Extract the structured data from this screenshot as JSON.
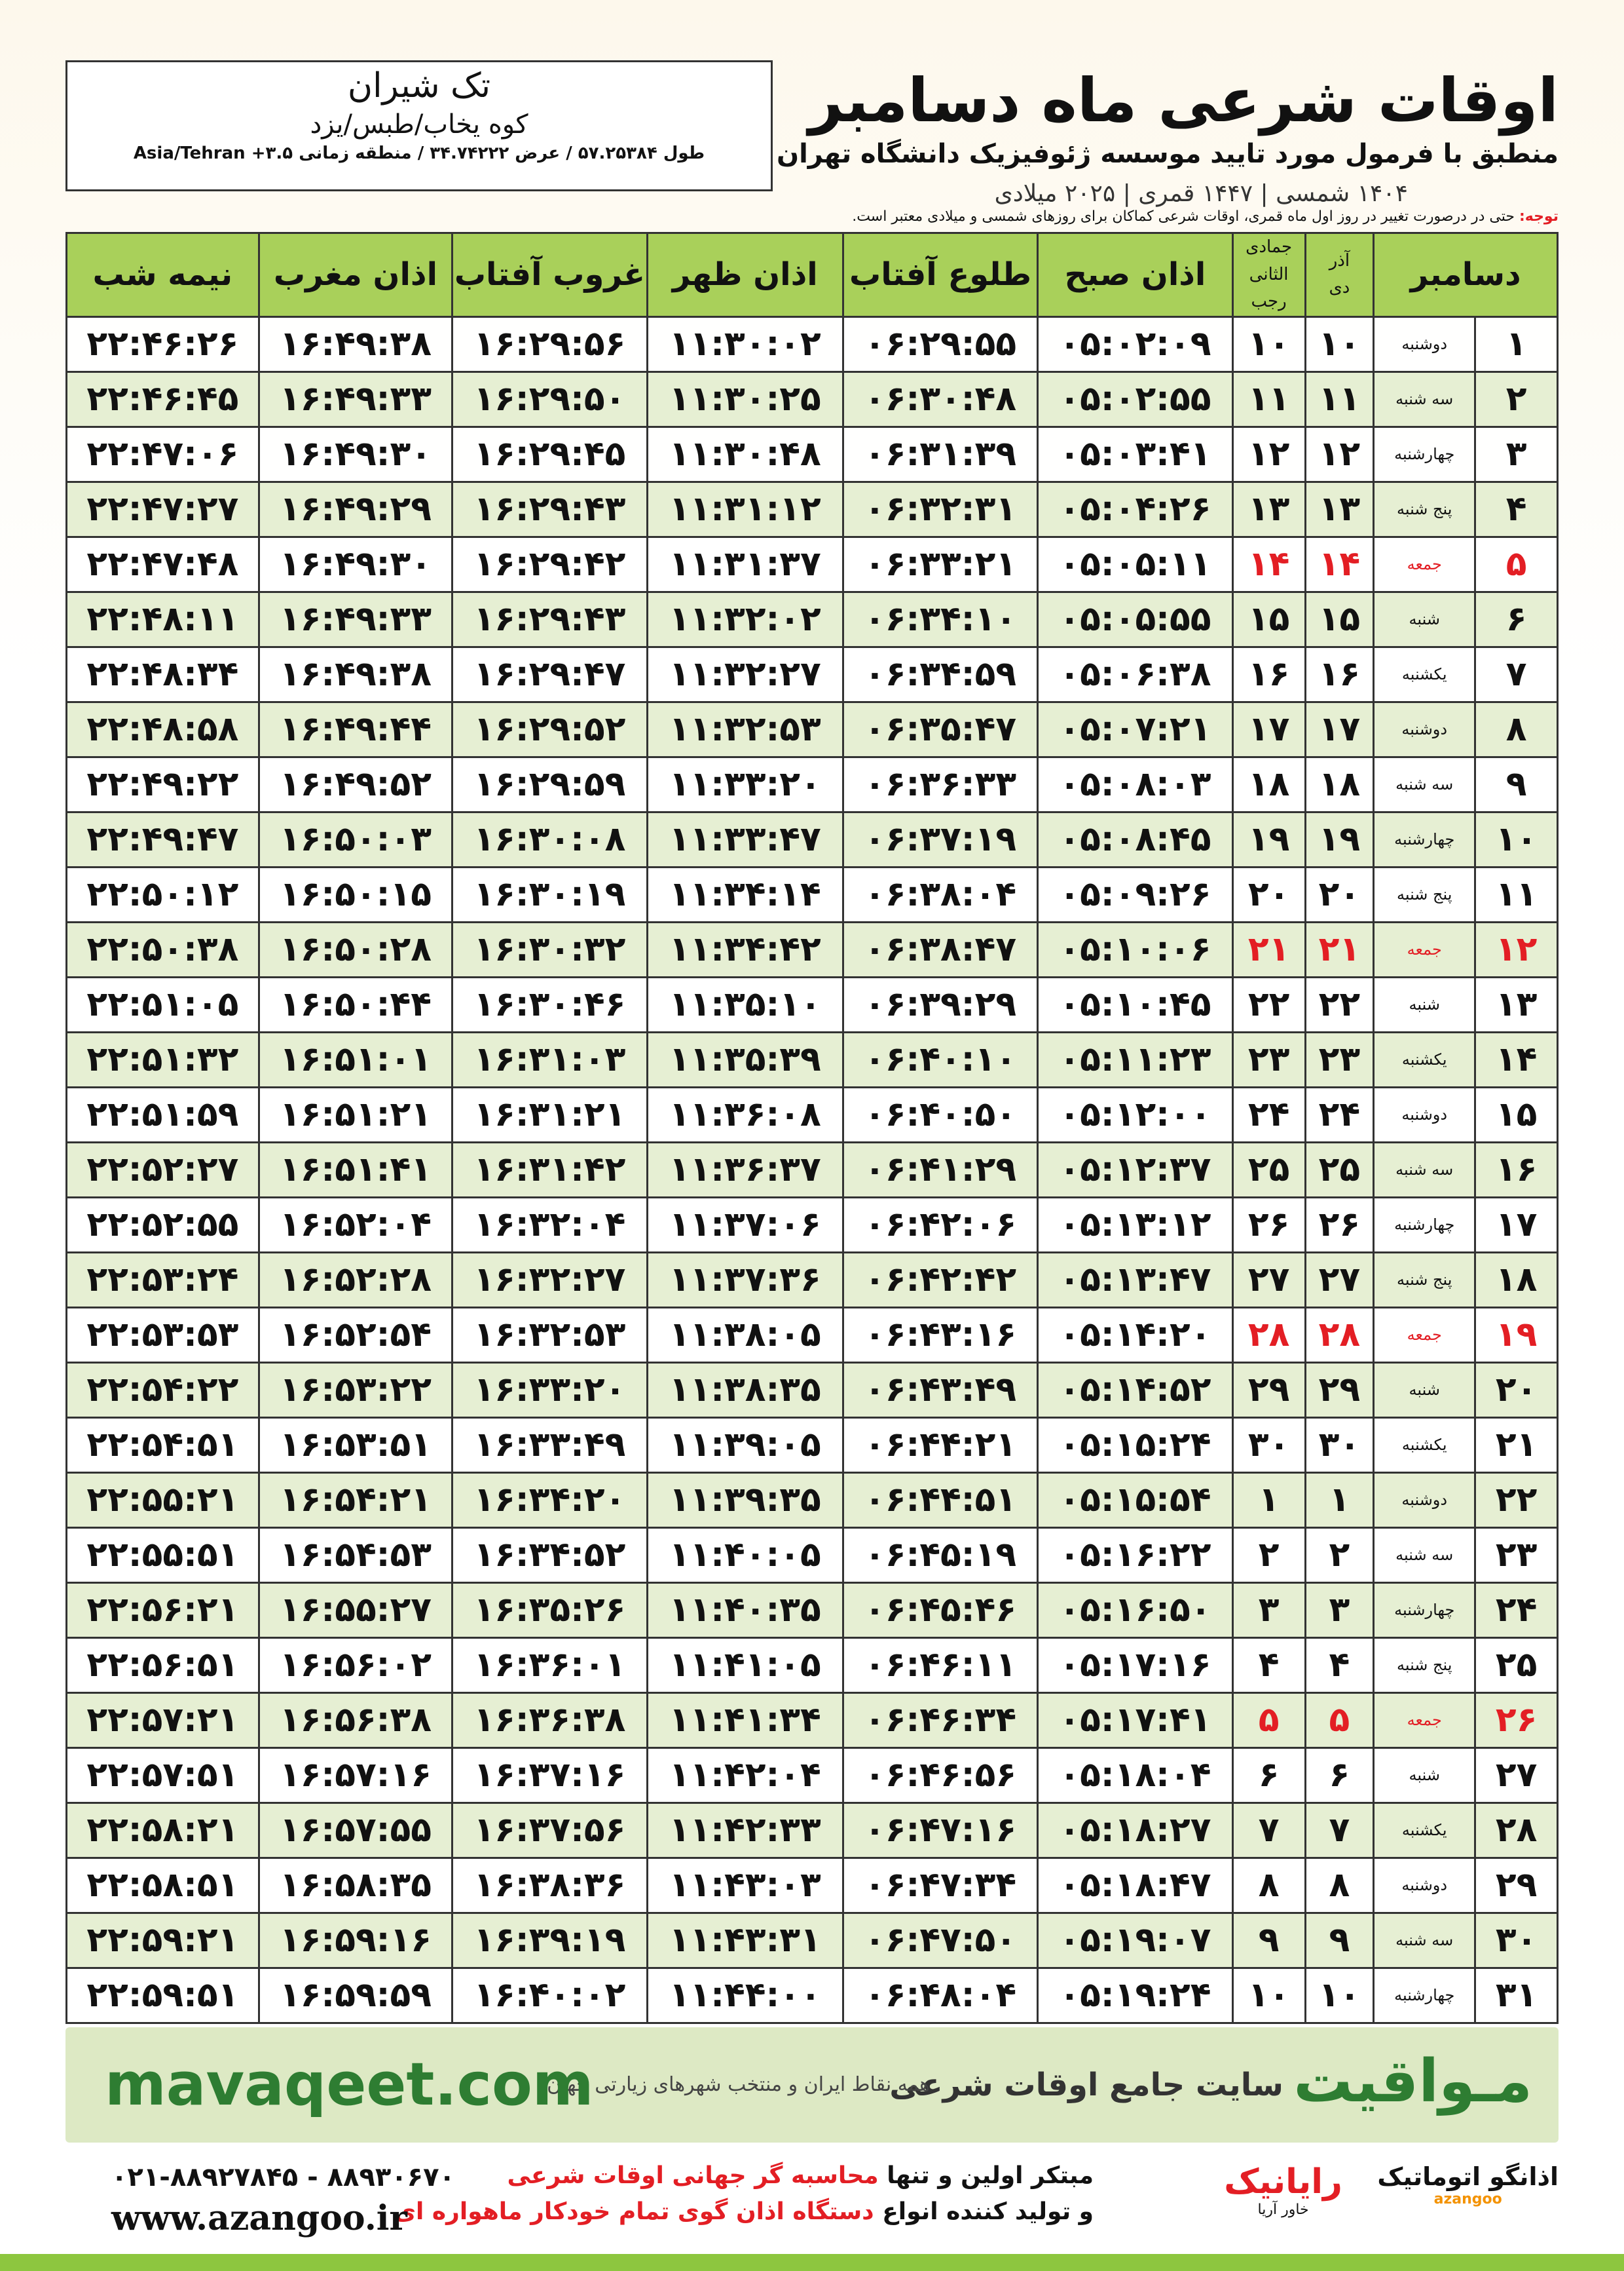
{
  "header": {
    "title": "اوقات شرعی ماه دسامبر",
    "subtitle": "منطبق با فرمول مورد تایید موسسه ژئوفیزیک دانشگاه تهران",
    "dates": "۱۴۰۴ شمسی | ۱۴۴۷ قمری | ۲۰۲۵ میلادی"
  },
  "location": {
    "name": "تک شیران",
    "region": "کوه یخاب/طبس/یزد",
    "coords": "طول ۵۷.۲۵۳۸۴ / عرض ۳۴.۷۴۲۲۲ / منطقه زمانی ۳.۵+ Asia/Tehran"
  },
  "note": {
    "label": "توجه:",
    "text": "حتی در درصورت تغییر در روز اول ماه قمری، اوقات شرعی کماکان برای روزهای شمسی و میلادی معتبر است."
  },
  "table": {
    "header_color": "#a9d05a",
    "alt_color": "#e6efd3",
    "columns": [
      {
        "text": "دسامبر"
      },
      {
        "top": "آذر",
        "bottom": "دی"
      },
      {
        "top": "جمادی الثانی",
        "bottom": "رجب"
      },
      {
        "text": "اذان صبح"
      },
      {
        "text": "طلوع آفتاب"
      },
      {
        "text": "اذان ظهر"
      },
      {
        "text": "غروب آفتاب"
      },
      {
        "text": "اذان مغرب"
      },
      {
        "text": "نیمه شب"
      }
    ],
    "rows": [
      {
        "cells": [
          "۱",
          "دوشنبه",
          "۱۰",
          "۱۰",
          "۰۵:۰۲:۰۹",
          "۰۶:۲۹:۵۵",
          "۱۱:۳۰:۰۲",
          "۱۶:۲۹:۵۶",
          "۱۶:۴۹:۳۸",
          "۲۲:۴۶:۲۶"
        ]
      },
      {
        "cells": [
          "۲",
          "سه شنبه",
          "۱۱",
          "۱۱",
          "۰۵:۰۲:۵۵",
          "۰۶:۳۰:۴۸",
          "۱۱:۳۰:۲۵",
          "۱۶:۲۹:۵۰",
          "۱۶:۴۹:۳۳",
          "۲۲:۴۶:۴۵"
        ]
      },
      {
        "cells": [
          "۳",
          "چهارشنبه",
          "۱۲",
          "۱۲",
          "۰۵:۰۳:۴۱",
          "۰۶:۳۱:۳۹",
          "۱۱:۳۰:۴۸",
          "۱۶:۲۹:۴۵",
          "۱۶:۴۹:۳۰",
          "۲۲:۴۷:۰۶"
        ]
      },
      {
        "cells": [
          "۴",
          "پنج شنبه",
          "۱۳",
          "۱۳",
          "۰۵:۰۴:۲۶",
          "۰۶:۳۲:۳۱",
          "۱۱:۳۱:۱۲",
          "۱۶:۲۹:۴۳",
          "۱۶:۴۹:۲۹",
          "۲۲:۴۷:۲۷"
        ]
      },
      {
        "cells": [
          "۵",
          "جمعه",
          "۱۴",
          "۱۴",
          "۰۵:۰۵:۱۱",
          "۰۶:۳۳:۲۱",
          "۱۱:۳۱:۳۷",
          "۱۶:۲۹:۴۲",
          "۱۶:۴۹:۳۰",
          "۲۲:۴۷:۴۸"
        ],
        "color": "#e31e24"
      },
      {
        "cells": [
          "۶",
          "شنبه",
          "۱۵",
          "۱۵",
          "۰۵:۰۵:۵۵",
          "۰۶:۳۴:۱۰",
          "۱۱:۳۲:۰۲",
          "۱۶:۲۹:۴۳",
          "۱۶:۴۹:۳۳",
          "۲۲:۴۸:۱۱"
        ]
      },
      {
        "cells": [
          "۷",
          "یکشنبه",
          "۱۶",
          "۱۶",
          "۰۵:۰۶:۳۸",
          "۰۶:۳۴:۵۹",
          "۱۱:۳۲:۲۷",
          "۱۶:۲۹:۴۷",
          "۱۶:۴۹:۳۸",
          "۲۲:۴۸:۳۴"
        ]
      },
      {
        "cells": [
          "۸",
          "دوشنبه",
          "۱۷",
          "۱۷",
          "۰۵:۰۷:۲۱",
          "۰۶:۳۵:۴۷",
          "۱۱:۳۲:۵۳",
          "۱۶:۲۹:۵۲",
          "۱۶:۴۹:۴۴",
          "۲۲:۴۸:۵۸"
        ]
      },
      {
        "cells": [
          "۹",
          "سه شنبه",
          "۱۸",
          "۱۸",
          "۰۵:۰۸:۰۳",
          "۰۶:۳۶:۳۳",
          "۱۱:۳۳:۲۰",
          "۱۶:۲۹:۵۹",
          "۱۶:۴۹:۵۲",
          "۲۲:۴۹:۲۲"
        ]
      },
      {
        "cells": [
          "۱۰",
          "چهارشنبه",
          "۱۹",
          "۱۹",
          "۰۵:۰۸:۴۵",
          "۰۶:۳۷:۱۹",
          "۱۱:۳۳:۴۷",
          "۱۶:۳۰:۰۸",
          "۱۶:۵۰:۰۳",
          "۲۲:۴۹:۴۷"
        ]
      },
      {
        "cells": [
          "۱۱",
          "پنج شنبه",
          "۲۰",
          "۲۰",
          "۰۵:۰۹:۲۶",
          "۰۶:۳۸:۰۴",
          "۱۱:۳۴:۱۴",
          "۱۶:۳۰:۱۹",
          "۱۶:۵۰:۱۵",
          "۲۲:۵۰:۱۲"
        ]
      },
      {
        "cells": [
          "۱۲",
          "جمعه",
          "۲۱",
          "۲۱",
          "۰۵:۱۰:۰۶",
          "۰۶:۳۸:۴۷",
          "۱۱:۳۴:۴۲",
          "۱۶:۳۰:۳۲",
          "۱۶:۵۰:۲۸",
          "۲۲:۵۰:۳۸"
        ],
        "color": "#e31e24"
      },
      {
        "cells": [
          "۱۳",
          "شنبه",
          "۲۲",
          "۲۲",
          "۰۵:۱۰:۴۵",
          "۰۶:۳۹:۲۹",
          "۱۱:۳۵:۱۰",
          "۱۶:۳۰:۴۶",
          "۱۶:۵۰:۴۴",
          "۲۲:۵۱:۰۵"
        ]
      },
      {
        "cells": [
          "۱۴",
          "یکشنبه",
          "۲۳",
          "۲۳",
          "۰۵:۱۱:۲۳",
          "۰۶:۴۰:۱۰",
          "۱۱:۳۵:۳۹",
          "۱۶:۳۱:۰۳",
          "۱۶:۵۱:۰۱",
          "۲۲:۵۱:۳۲"
        ]
      },
      {
        "cells": [
          "۱۵",
          "دوشنبه",
          "۲۴",
          "۲۴",
          "۰۵:۱۲:۰۰",
          "۰۶:۴۰:۵۰",
          "۱۱:۳۶:۰۸",
          "۱۶:۳۱:۲۱",
          "۱۶:۵۱:۲۱",
          "۲۲:۵۱:۵۹"
        ]
      },
      {
        "cells": [
          "۱۶",
          "سه شنبه",
          "۲۵",
          "۲۵",
          "۰۵:۱۲:۳۷",
          "۰۶:۴۱:۲۹",
          "۱۱:۳۶:۳۷",
          "۱۶:۳۱:۴۲",
          "۱۶:۵۱:۴۱",
          "۲۲:۵۲:۲۷"
        ]
      },
      {
        "cells": [
          "۱۷",
          "چهارشنبه",
          "۲۶",
          "۲۶",
          "۰۵:۱۳:۱۲",
          "۰۶:۴۲:۰۶",
          "۱۱:۳۷:۰۶",
          "۱۶:۳۲:۰۴",
          "۱۶:۵۲:۰۴",
          "۲۲:۵۲:۵۵"
        ]
      },
      {
        "cells": [
          "۱۸",
          "پنج شنبه",
          "۲۷",
          "۲۷",
          "۰۵:۱۳:۴۷",
          "۰۶:۴۲:۴۲",
          "۱۱:۳۷:۳۶",
          "۱۶:۳۲:۲۷",
          "۱۶:۵۲:۲۸",
          "۲۲:۵۳:۲۴"
        ]
      },
      {
        "cells": [
          "۱۹",
          "جمعه",
          "۲۸",
          "۲۸",
          "۰۵:۱۴:۲۰",
          "۰۶:۴۳:۱۶",
          "۱۱:۳۸:۰۵",
          "۱۶:۳۲:۵۳",
          "۱۶:۵۲:۵۴",
          "۲۲:۵۳:۵۳"
        ],
        "color": "#e31e24"
      },
      {
        "cells": [
          "۲۰",
          "شنبه",
          "۲۹",
          "۲۹",
          "۰۵:۱۴:۵۲",
          "۰۶:۴۳:۴۹",
          "۱۱:۳۸:۳۵",
          "۱۶:۳۳:۲۰",
          "۱۶:۵۳:۲۲",
          "۲۲:۵۴:۲۲"
        ]
      },
      {
        "cells": [
          "۲۱",
          "یکشنبه",
          "۳۰",
          "۳۰",
          "۰۵:۱۵:۲۴",
          "۰۶:۴۴:۲۱",
          "۱۱:۳۹:۰۵",
          "۱۶:۳۳:۴۹",
          "۱۶:۵۳:۵۱",
          "۲۲:۵۴:۵۱"
        ]
      },
      {
        "cells": [
          "۲۲",
          "دوشنبه",
          "۱",
          "۱",
          "۰۵:۱۵:۵۴",
          "۰۶:۴۴:۵۱",
          "۱۱:۳۹:۳۵",
          "۱۶:۳۴:۲۰",
          "۱۶:۵۴:۲۱",
          "۲۲:۵۵:۲۱"
        ]
      },
      {
        "cells": [
          "۲۳",
          "سه شنبه",
          "۲",
          "۲",
          "۰۵:۱۶:۲۲",
          "۰۶:۴۵:۱۹",
          "۱۱:۴۰:۰۵",
          "۱۶:۳۴:۵۲",
          "۱۶:۵۴:۵۳",
          "۲۲:۵۵:۵۱"
        ]
      },
      {
        "cells": [
          "۲۴",
          "چهارشنبه",
          "۳",
          "۳",
          "۰۵:۱۶:۵۰",
          "۰۶:۴۵:۴۶",
          "۱۱:۴۰:۳۵",
          "۱۶:۳۵:۲۶",
          "۱۶:۵۵:۲۷",
          "۲۲:۵۶:۲۱"
        ]
      },
      {
        "cells": [
          "۲۵",
          "پنج شنبه",
          "۴",
          "۴",
          "۰۵:۱۷:۱۶",
          "۰۶:۴۶:۱۱",
          "۱۱:۴۱:۰۵",
          "۱۶:۳۶:۰۱",
          "۱۶:۵۶:۰۲",
          "۲۲:۵۶:۵۱"
        ]
      },
      {
        "cells": [
          "۲۶",
          "جمعه",
          "۵",
          "۵",
          "۰۵:۱۷:۴۱",
          "۰۶:۴۶:۳۴",
          "۱۱:۴۱:۳۴",
          "۱۶:۳۶:۳۸",
          "۱۶:۵۶:۳۸",
          "۲۲:۵۷:۲۱"
        ],
        "color": "#e31e24"
      },
      {
        "cells": [
          "۲۷",
          "شنبه",
          "۶",
          "۶",
          "۰۵:۱۸:۰۴",
          "۰۶:۴۶:۵۶",
          "۱۱:۴۲:۰۴",
          "۱۶:۳۷:۱۶",
          "۱۶:۵۷:۱۶",
          "۲۲:۵۷:۵۱"
        ]
      },
      {
        "cells": [
          "۲۸",
          "یکشنبه",
          "۷",
          "۷",
          "۰۵:۱۸:۲۷",
          "۰۶:۴۷:۱۶",
          "۱۱:۴۲:۳۳",
          "۱۶:۳۷:۵۶",
          "۱۶:۵۷:۵۵",
          "۲۲:۵۸:۲۱"
        ]
      },
      {
        "cells": [
          "۲۹",
          "دوشنبه",
          "۸",
          "۸",
          "۰۵:۱۸:۴۷",
          "۰۶:۴۷:۳۴",
          "۱۱:۴۳:۰۳",
          "۱۶:۳۸:۳۶",
          "۱۶:۵۸:۳۵",
          "۲۲:۵۸:۵۱"
        ]
      },
      {
        "cells": [
          "۳۰",
          "سه شنبه",
          "۹",
          "۹",
          "۰۵:۱۹:۰۷",
          "۰۶:۴۷:۵۰",
          "۱۱:۴۳:۳۱",
          "۱۶:۳۹:۱۹",
          "۱۶:۵۹:۱۶",
          "۲۲:۵۹:۲۱"
        ]
      },
      {
        "cells": [
          "۳۱",
          "چهارشنبه",
          "۱۰",
          "۱۰",
          "۰۵:۱۹:۲۴",
          "۰۶:۴۸:۰۴",
          "۱۱:۴۴:۰۰",
          "۱۶:۴۰:۰۲",
          "۱۶:۵۹:۵۹",
          "۲۲:۵۹:۵۱"
        ]
      }
    ]
  },
  "banner": {
    "brand": "مـواقیت",
    "tagline": "سایت جامع اوقات شرعی",
    "subline": "همه نقاط ایران و منتخب شهرهای زیارتی جهان",
    "url": "mavaqeet.com"
  },
  "footer": {
    "line1_a": "مبتکر اولین و تنها",
    "line1_b": "محاسبه گر جهانی اوقات شرعی",
    "line2_a": "و تولید کننده انواع",
    "line2_b": "دستگاه اذان گوی تمام خودکار ماهواره ای",
    "phone": "۰۲۱-۸۸۹۲۷۸۴۵ - ۸۸۹۳۰۶۷۰",
    "website": "www.azangoo.ir",
    "logo1": "رایانیک",
    "logo1_sub": "خاور آریا",
    "logo2": "اذانگو اتوماتیک",
    "logo2_sub": "azangoo"
  }
}
